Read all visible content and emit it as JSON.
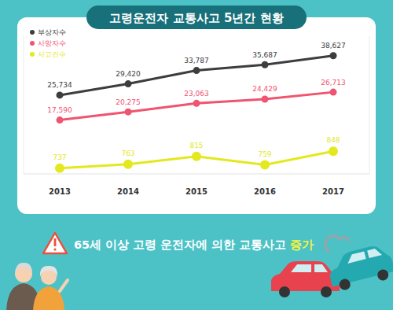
{
  "chart_data": {
    "type": "line",
    "title": "고령운전자 교통사고 5년간 현황",
    "categories": [
      "2013",
      "2014",
      "2015",
      "2016",
      "2017"
    ],
    "series": [
      {
        "name": "부상자수",
        "color": "#3d3d3d",
        "marker": "circle",
        "values": [
          25734,
          29420,
          33787,
          35687,
          38627
        ],
        "value_labels": [
          "25,734",
          "29,420",
          "33,787",
          "35,687",
          "38,627"
        ]
      },
      {
        "name": "사망자수",
        "color": "#ef5470",
        "marker": "circle",
        "values": [
          17590,
          20275,
          23063,
          24429,
          26713
        ],
        "value_labels": [
          "17,590",
          "20,275",
          "23,063",
          "24,429",
          "26,713"
        ]
      },
      {
        "name": "사고건수",
        "color": "#e4e81e",
        "marker": "circle",
        "axis": "y2",
        "values": [
          737,
          763,
          815,
          759,
          848
        ],
        "value_labels": [
          "737",
          "763",
          "815",
          "759",
          "848"
        ]
      }
    ],
    "ylim": [
      0,
      45000
    ],
    "yticks": [],
    "y2lim": [
      700,
      1600
    ],
    "y2ticks": [],
    "tick_labels": "x",
    "grid": false,
    "legend": "upper left",
    "data_labels": true,
    "annotations": [
      "65세 이상 고령 운전자에 의한 교통사고",
      "증가"
    ]
  }
}
